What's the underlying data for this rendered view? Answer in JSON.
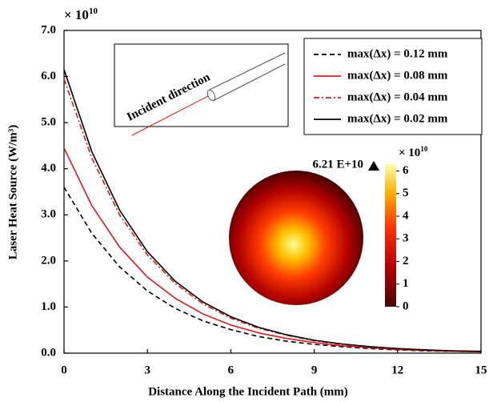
{
  "chart_data": {
    "type": "line",
    "xlabel": "Distance Along the Incident Path (mm)",
    "ylabel": "Laser Heat Source (W/m³)",
    "y_multiplier": {
      "base": "× 10",
      "exponent": "10"
    },
    "x": [
      0,
      1,
      2,
      3,
      4,
      5,
      6,
      7,
      8,
      9,
      10,
      11,
      12,
      13,
      14,
      15
    ],
    "series": [
      {
        "name": "max(Δx) = 0.12 mm",
        "color": "#000000",
        "dash": "dashed",
        "values": [
          3.6,
          2.6,
          1.87,
          1.35,
          0.97,
          0.7,
          0.51,
          0.36,
          0.26,
          0.19,
          0.14,
          0.1,
          0.07,
          0.05,
          0.04,
          0.03
        ]
      },
      {
        "name": "max(Δx) = 0.08 mm",
        "color": "#e8141b",
        "dash": "solid",
        "values": [
          4.45,
          3.2,
          2.3,
          1.65,
          1.19,
          0.85,
          0.61,
          0.44,
          0.32,
          0.23,
          0.16,
          0.12,
          0.08,
          0.06,
          0.04,
          0.03
        ]
      },
      {
        "name": "max(Δx) = 0.04 mm",
        "color": "#e8141b",
        "dash": "dashdot",
        "values": [
          5.95,
          4.23,
          3.0,
          2.13,
          1.51,
          1.07,
          0.76,
          0.54,
          0.39,
          0.27,
          0.19,
          0.14,
          0.1,
          0.07,
          0.05,
          0.03
        ]
      },
      {
        "name": "max(Δx) = 0.02 mm",
        "color": "#000000",
        "dash": "solid",
        "values": [
          6.15,
          4.37,
          3.1,
          2.2,
          1.56,
          1.11,
          0.79,
          0.56,
          0.4,
          0.28,
          0.2,
          0.14,
          0.1,
          0.07,
          0.05,
          0.04
        ]
      }
    ],
    "xlim": [
      0,
      15
    ],
    "xticks": [
      0,
      3,
      6,
      9,
      12,
      15
    ],
    "ylim": [
      0,
      7
    ],
    "yticks": [
      {
        "value": 0,
        "label": "0.0"
      },
      {
        "value": 1,
        "label": "1.0"
      },
      {
        "value": 2,
        "label": "2.0"
      },
      {
        "value": 3,
        "label": "3.0"
      },
      {
        "value": 4,
        "label": "4.0"
      },
      {
        "value": 5,
        "label": "5.0"
      },
      {
        "value": 6,
        "label": "6.0"
      },
      {
        "value": 7,
        "label": "7.0"
      }
    ],
    "legend": "upper right",
    "inset": {
      "label": "Incident direction"
    },
    "colorbar": {
      "lim": [
        0,
        6.3
      ],
      "ticks": [
        0,
        1,
        2,
        3,
        4,
        5,
        6
      ],
      "multiplier": {
        "base": "× 10",
        "exponent": "10"
      },
      "max_label": "6.21 E+10"
    }
  }
}
